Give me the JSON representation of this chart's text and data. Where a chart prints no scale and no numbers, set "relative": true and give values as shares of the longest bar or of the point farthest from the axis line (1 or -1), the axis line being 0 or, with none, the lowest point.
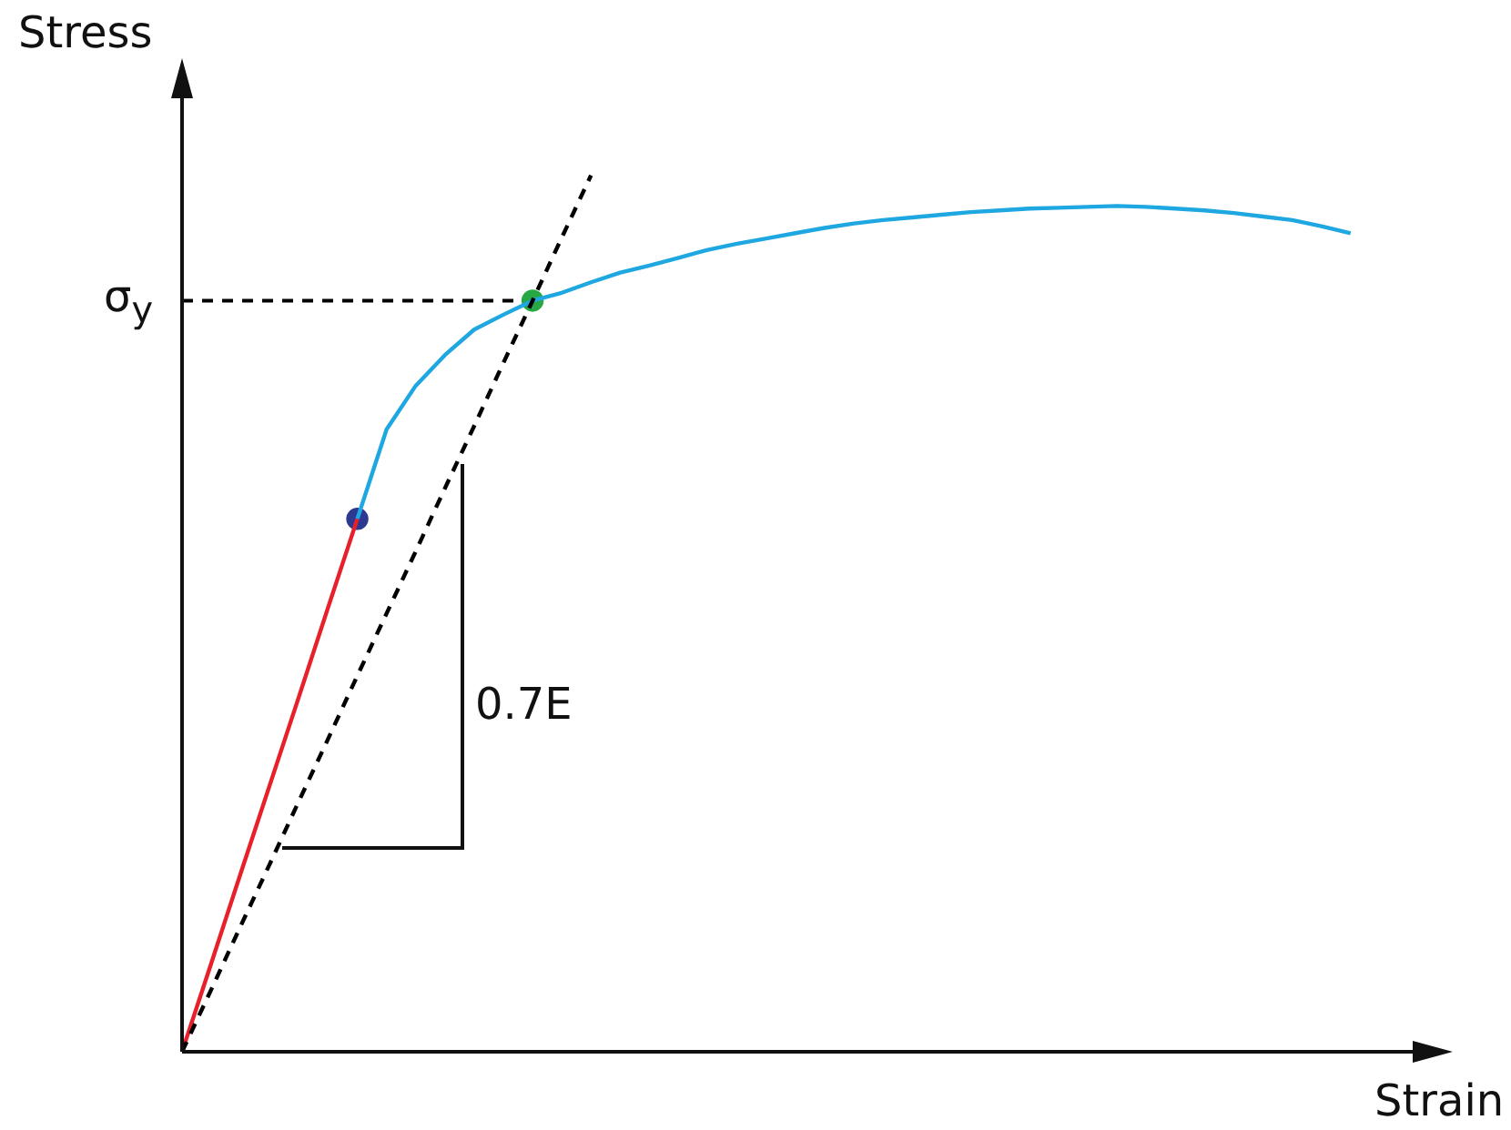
{
  "chart_data": {
    "type": "line",
    "xlabel": "Strain",
    "ylabel": "Stress",
    "relative": true,
    "categories": [
      null,
      null,
      null,
      null,
      null,
      null,
      null,
      null,
      null,
      null,
      null,
      null,
      null,
      null,
      null,
      null,
      null,
      null,
      null,
      null,
      null,
      null,
      null,
      null,
      null,
      null,
      null,
      null,
      null,
      null,
      null,
      null,
      null,
      null,
      null,
      null,
      null,
      null,
      null,
      null,
      null,
      null,
      null,
      null
    ],
    "series": [
      {
        "type": "line",
        "color": "#000000",
        "line_style": "dashed",
        "marker": "none",
        "values": [
          0,
          0.071,
          0.143,
          0.214,
          0.286,
          0.357,
          0.429,
          0.5,
          0.571,
          0.643,
          0.714,
          0.786,
          0.857,
          0.929,
          1,
          null,
          null,
          null,
          null,
          null,
          null,
          null,
          null,
          null,
          null,
          null,
          null,
          null,
          null,
          null,
          null,
          null,
          null,
          null,
          null,
          null,
          null,
          null,
          null,
          null,
          null,
          null,
          null,
          null
        ]
      },
      {
        "type": "line",
        "color": "#e8202a",
        "line_style": "solid",
        "marker": "none",
        "values": [
          0,
          0.101,
          0.203,
          0.304,
          0.405,
          0.507,
          0.608,
          null,
          null,
          null,
          null,
          null,
          null,
          null,
          null,
          null,
          null,
          null,
          null,
          null,
          null,
          null,
          null,
          null,
          null,
          null,
          null,
          null,
          null,
          null,
          null,
          null,
          null,
          null,
          null,
          null,
          null,
          null,
          null,
          null,
          null,
          null,
          null,
          null
        ]
      },
      {
        "type": "line",
        "color": "#1ea7e1",
        "line_style": "solid",
        "marker": "none",
        "values": [
          null,
          null,
          null,
          null,
          null,
          null,
          0.608,
          0.71,
          0.76,
          0.795,
          0.824,
          0.841,
          0.857,
          0.866,
          0.878,
          0.889,
          0.897,
          0.906,
          0.915,
          0.922,
          0.928,
          0.934,
          0.94,
          0.945,
          0.949,
          0.952,
          0.955,
          0.958,
          0.96,
          0.962,
          0.963,
          0.964,
          0.965,
          0.964,
          0.962,
          0.96,
          0.957,
          0.953,
          0.949,
          0.942,
          0.934,
          null,
          null,
          null
        ]
      },
      {
        "type": "line",
        "color": "#2b3990",
        "marker": "circle",
        "values": [
          null,
          null,
          null,
          null,
          null,
          null,
          0.608,
          null,
          null,
          null,
          null,
          null,
          null,
          null,
          null,
          null,
          null,
          null,
          null,
          null,
          null,
          null,
          null,
          null,
          null,
          null,
          null,
          null,
          null,
          null,
          null,
          null,
          null,
          null,
          null,
          null,
          null,
          null,
          null,
          null,
          null,
          null,
          null,
          null
        ]
      },
      {
        "type": "line",
        "color": "#27a844",
        "marker": "circle",
        "values": [
          null,
          null,
          null,
          null,
          null,
          null,
          null,
          null,
          null,
          null,
          null,
          null,
          0.857,
          null,
          null,
          null,
          null,
          null,
          null,
          null,
          null,
          null,
          null,
          null,
          null,
          null,
          null,
          null,
          null,
          null,
          null,
          null,
          null,
          null,
          null,
          null,
          null,
          null,
          null,
          null,
          null,
          null,
          null,
          null
        ]
      }
    ],
    "ref_lines": [
      {
        "axis": "y",
        "value": 0.857,
        "label": "σ$_{y}$",
        "color": "#000000",
        "line_style": "dashed"
      }
    ],
    "annotations": [
      "0.7E"
    ]
  }
}
